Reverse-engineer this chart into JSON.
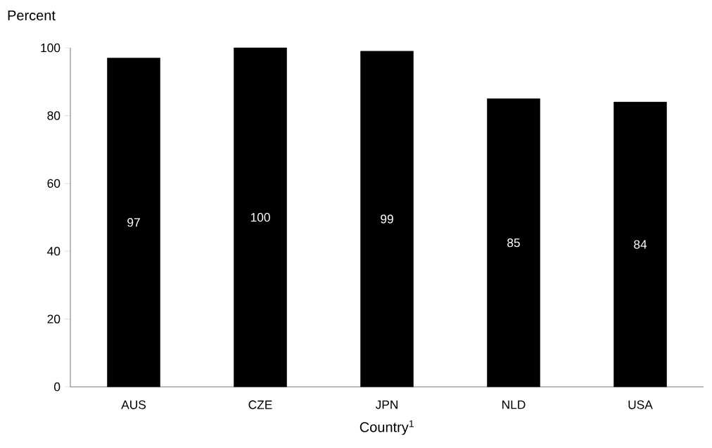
{
  "chart_data": {
    "type": "bar",
    "xlabel": "Country$^{1}$",
    "ylabel": "Percent",
    "categories": [
      "AUS",
      "CZE",
      "JPN",
      "NLD",
      "USA"
    ],
    "values": [
      97,
      100,
      99,
      85,
      84
    ],
    "color": "#000000",
    "ylim": [
      0,
      100
    ],
    "yticks": [
      0,
      20,
      40,
      60,
      80,
      100
    ],
    "data_labels": true,
    "grid": false
  }
}
